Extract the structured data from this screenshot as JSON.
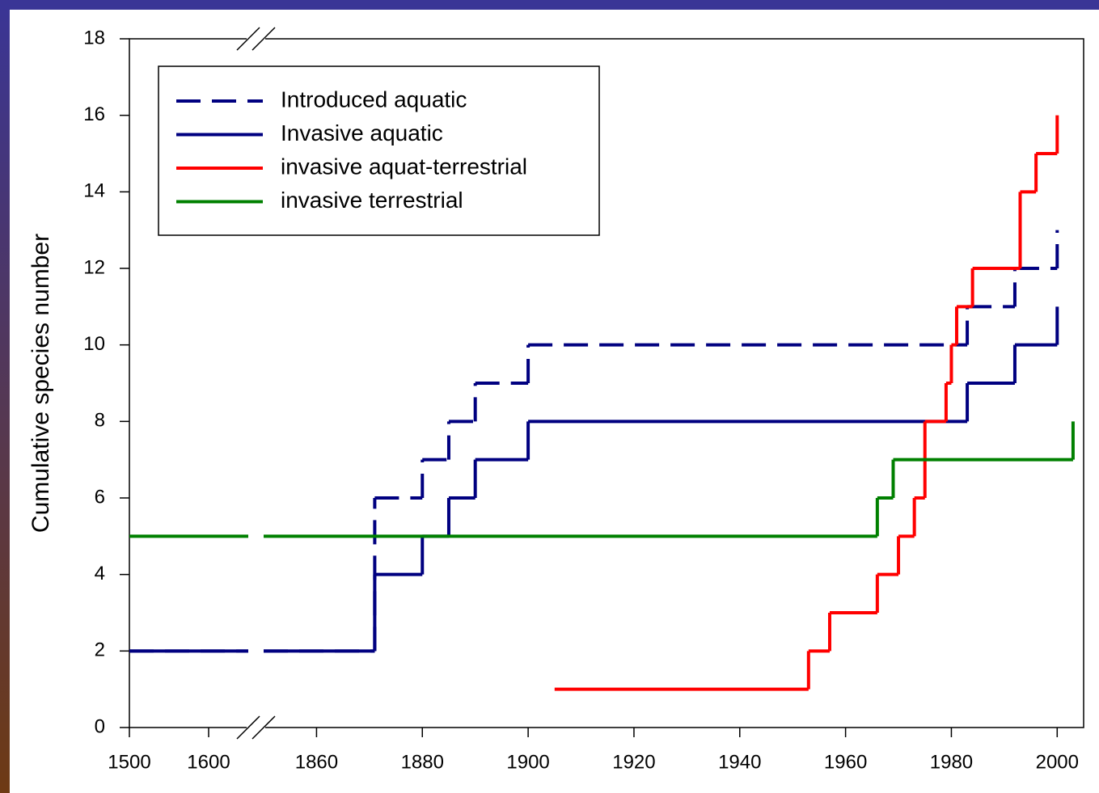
{
  "chart_data": {
    "type": "step",
    "y_label": "Cumulative species number",
    "xlim": [
      1500,
      2005
    ],
    "xbreak": [
      1650,
      1850
    ],
    "xticks": [
      1500,
      1600,
      1860,
      1880,
      1900,
      1920,
      1940,
      1960,
      1980,
      2000
    ],
    "ylim": [
      0,
      18
    ],
    "yticks": [
      0,
      2,
      4,
      6,
      8,
      10,
      12,
      14,
      16,
      18
    ],
    "legend": "top-left",
    "series": [
      {
        "name": "Introduced aquatic",
        "color": "#000080",
        "dash": true,
        "x": [
          1500,
          1871,
          1880,
          1885,
          1890,
          1900,
          1983,
          1992,
          2000
        ],
        "values": [
          2,
          6,
          7,
          8,
          9,
          10,
          11,
          12,
          13
        ]
      },
      {
        "name": "Invasive aquatic",
        "color": "#000080",
        "dash": false,
        "x": [
          1500,
          1871,
          1880,
          1885,
          1890,
          1900,
          1983,
          1992,
          2000
        ],
        "values": [
          2,
          4,
          5,
          6,
          7,
          8,
          9,
          10,
          11
        ]
      },
      {
        "name": "invasive aquat-terrestrial",
        "color": "#ff0000",
        "dash": false,
        "x": [
          1905,
          1953,
          1957,
          1966,
          1970,
          1973,
          1975,
          1979,
          1980,
          1981,
          1984,
          1993,
          1996,
          2000
        ],
        "values": [
          1,
          2,
          3,
          4,
          5,
          6,
          8,
          9,
          10,
          11,
          12,
          14,
          15,
          16
        ]
      },
      {
        "name": "invasive terrestrial",
        "color": "#008000",
        "dash": false,
        "x": [
          1500,
          1966,
          1969,
          2003
        ],
        "values": [
          5,
          6,
          7,
          8
        ]
      }
    ]
  }
}
